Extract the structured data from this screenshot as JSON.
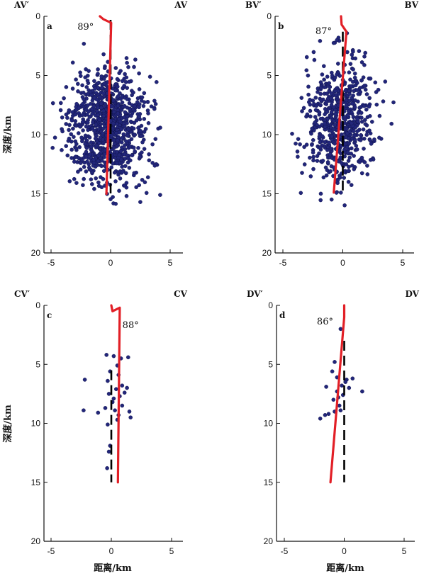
{
  "ylabel": "深度/km",
  "xlabel": "距离/km",
  "chart_data": [
    {
      "type": "scatter",
      "panel_label": "a",
      "profile_left": "AV′",
      "profile_right": "AV",
      "dip_label": "89°",
      "xlim": [
        -6,
        6
      ],
      "ylim": [
        0,
        20
      ],
      "xticks": [
        -5,
        0,
        5
      ],
      "yticks": [
        0,
        5,
        10,
        15,
        20
      ],
      "y_inverted": true,
      "point_color": "#22267a",
      "fault_color": "#e21f26",
      "cluster": {
        "n": 900,
        "x_mean": -0.3,
        "x_sd": 1.65,
        "y_mean": 9.4,
        "y_sd": 2.35
      },
      "fault_trace": [
        [
          -0.9,
          0.0
        ],
        [
          -0.6,
          0.25
        ],
        [
          0.05,
          0.55
        ],
        [
          -0.35,
          15.0
        ]
      ],
      "vertical_reference": {
        "x": 0.0,
        "y_from": 0.3,
        "y_to": 15.0
      }
    },
    {
      "type": "scatter",
      "panel_label": "b",
      "profile_left": "BV′",
      "profile_right": "BV",
      "dip_label": "87°",
      "xlim": [
        -6,
        6
      ],
      "ylim": [
        0,
        20
      ],
      "xticks": [
        -5,
        0,
        5
      ],
      "yticks": [
        0,
        5,
        10,
        15,
        20
      ],
      "y_inverted": true,
      "point_color": "#22267a",
      "fault_color": "#e21f26",
      "cluster": {
        "n": 650,
        "x_mean": -0.2,
        "x_sd": 1.35,
        "y_mean": 8.9,
        "y_sd": 2.5
      },
      "fault_trace": [
        [
          -0.15,
          0.0
        ],
        [
          -0.1,
          0.7
        ],
        [
          0.3,
          1.3
        ],
        [
          -0.75,
          14.9
        ]
      ],
      "vertical_reference": {
        "x": 0.0,
        "y_from": 1.3,
        "y_to": 15.0
      }
    },
    {
      "type": "scatter",
      "panel_label": "c",
      "profile_left": "CV′",
      "profile_right": "CV",
      "dip_label": "88°",
      "xlim": [
        -6,
        6
      ],
      "ylim": [
        0,
        20
      ],
      "xticks": [
        -5,
        0,
        5
      ],
      "yticks": [
        0,
        5,
        10,
        15,
        20
      ],
      "y_inverted": true,
      "point_color": "#22267a",
      "fault_color": "#e21f26",
      "points": [
        [
          -0.4,
          4.2
        ],
        [
          0.2,
          4.3
        ],
        [
          0.8,
          4.5
        ],
        [
          1.4,
          4.4
        ],
        [
          0.5,
          5.1
        ],
        [
          -0.1,
          5.6
        ],
        [
          0.6,
          5.9
        ],
        [
          -0.3,
          6.4
        ],
        [
          0.9,
          6.8
        ],
        [
          1.3,
          7.0
        ],
        [
          0.4,
          7.1
        ],
        [
          -0.2,
          7.5
        ],
        [
          0.7,
          7.7
        ],
        [
          -2.2,
          6.3
        ],
        [
          0.1,
          8.2
        ],
        [
          0.9,
          8.5
        ],
        [
          -0.5,
          8.7
        ],
        [
          0.3,
          8.9
        ],
        [
          1.5,
          9.0
        ],
        [
          -1.1,
          9.1
        ],
        [
          -2.3,
          8.9
        ],
        [
          1.6,
          9.5
        ],
        [
          0.5,
          9.7
        ],
        [
          -0.3,
          10.1
        ],
        [
          -0.1,
          11.9
        ],
        [
          -0.2,
          12.4
        ],
        [
          -0.35,
          13.8
        ],
        [
          0.2,
          7.9
        ],
        [
          0.6,
          9.3
        ],
        [
          1.1,
          7.4
        ]
      ],
      "fault_trace": [
        [
          0.0,
          0.0
        ],
        [
          0.1,
          0.5
        ],
        [
          0.7,
          0.2
        ],
        [
          0.55,
          15.0
        ]
      ],
      "vertical_reference": {
        "x": 0.0,
        "y_from": 5.5,
        "y_to": 15.0
      }
    },
    {
      "type": "scatter",
      "panel_label": "d",
      "profile_left": "DV′",
      "profile_right": "DV",
      "dip_label": "86°",
      "xlim": [
        -6,
        6
      ],
      "ylim": [
        0,
        20
      ],
      "xticks": [
        -5,
        0,
        5
      ],
      "yticks": [
        0,
        5,
        10,
        15,
        20
      ],
      "y_inverted": true,
      "point_color": "#22267a",
      "fault_color": "#e21f26",
      "points": [
        [
          -0.3,
          2.0
        ],
        [
          -0.8,
          4.8
        ],
        [
          -1.0,
          5.6
        ],
        [
          -0.6,
          6.1
        ],
        [
          0.2,
          6.3
        ],
        [
          0.7,
          6.2
        ],
        [
          -0.2,
          6.8
        ],
        [
          -1.5,
          6.9
        ],
        [
          0.4,
          7.0
        ],
        [
          -0.6,
          7.3
        ],
        [
          -0.1,
          7.6
        ],
        [
          1.5,
          7.3
        ],
        [
          -0.9,
          8.0
        ],
        [
          -0.4,
          8.5
        ],
        [
          -0.3,
          8.9
        ],
        [
          -0.8,
          9.0
        ],
        [
          -1.6,
          9.3
        ],
        [
          -2.0,
          9.6
        ],
        [
          -1.3,
          9.2
        ],
        [
          0.1,
          6.5
        ],
        [
          -0.5,
          7.8
        ]
      ],
      "fault_trace": [
        [
          0.0,
          0.0
        ],
        [
          0.0,
          1.0
        ],
        [
          -1.15,
          15.0
        ]
      ],
      "vertical_reference": {
        "x": 0.0,
        "y_from": 3.0,
        "y_to": 15.0
      }
    }
  ]
}
